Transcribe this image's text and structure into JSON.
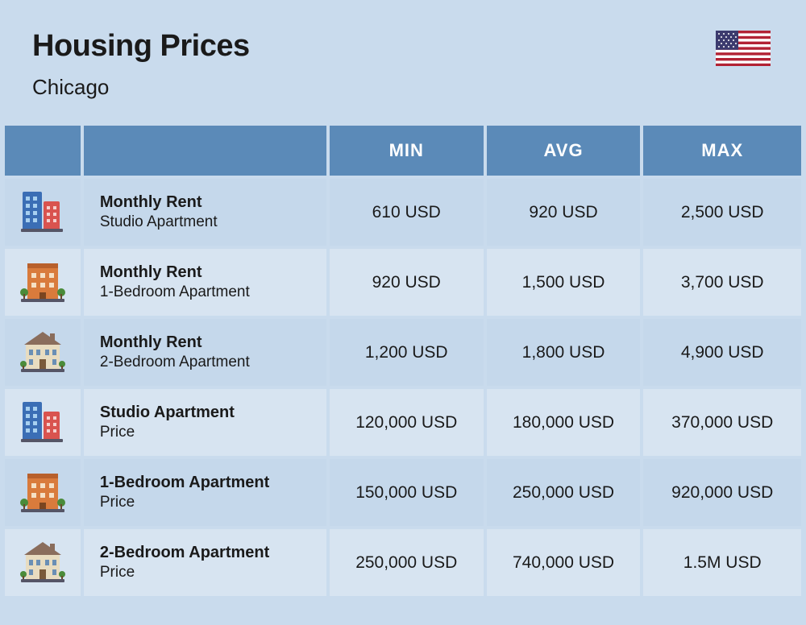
{
  "header": {
    "title": "Housing Prices",
    "subtitle": "Chicago"
  },
  "table": {
    "columns": {
      "min": "MIN",
      "avg": "AVG",
      "max": "MAX"
    },
    "header_bg_color": "#5b8ab8",
    "header_text_color": "#ffffff",
    "row_bg_odd": "#c5d8eb",
    "row_bg_even": "#d7e4f1",
    "rows": [
      {
        "icon": "buildings-tall",
        "title": "Monthly Rent",
        "subtitle": "Studio Apartment",
        "min": "610 USD",
        "avg": "920 USD",
        "max": "2,500 USD"
      },
      {
        "icon": "building-brick",
        "title": "Monthly Rent",
        "subtitle": "1-Bedroom Apartment",
        "min": "920 USD",
        "avg": "1,500 USD",
        "max": "3,700 USD"
      },
      {
        "icon": "house-mansion",
        "title": "Monthly Rent",
        "subtitle": "2-Bedroom Apartment",
        "min": "1,200 USD",
        "avg": "1,800 USD",
        "max": "4,900 USD"
      },
      {
        "icon": "buildings-tall",
        "title": "Studio Apartment",
        "subtitle": "Price",
        "min": "120,000 USD",
        "avg": "180,000 USD",
        "max": "370,000 USD"
      },
      {
        "icon": "building-brick",
        "title": "1-Bedroom Apartment",
        "subtitle": "Price",
        "min": "150,000 USD",
        "avg": "250,000 USD",
        "max": "920,000 USD"
      },
      {
        "icon": "house-mansion",
        "title": "2-Bedroom Apartment",
        "subtitle": "Price",
        "min": "250,000 USD",
        "avg": "740,000 USD",
        "max": "1.5M USD"
      }
    ]
  },
  "colors": {
    "page_bg": "#c9dbed",
    "text": "#1a1a1a"
  }
}
